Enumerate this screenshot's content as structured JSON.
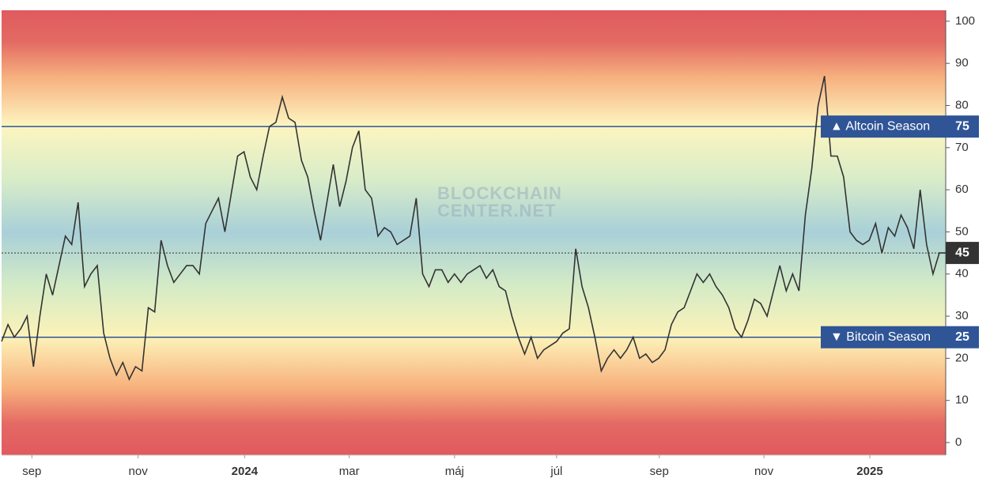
{
  "chart_data": {
    "type": "line",
    "series": [
      {
        "color": "#333333",
        "values": [
          24,
          28,
          25,
          27,
          30,
          18,
          30,
          40,
          35,
          42,
          49,
          47,
          57,
          37,
          40,
          42,
          26,
          20,
          16,
          19,
          15,
          18,
          17,
          32,
          31,
          48,
          42,
          38,
          40,
          42,
          42,
          40,
          52,
          55,
          58,
          50,
          59,
          68,
          69,
          63,
          60,
          68,
          75,
          76,
          82,
          77,
          76,
          67,
          63,
          55,
          48,
          57,
          66,
          56,
          62,
          70,
          74,
          60,
          58,
          49,
          51,
          50,
          47,
          48,
          49,
          58,
          40,
          37,
          41,
          41,
          38,
          40,
          38,
          40,
          41,
          42,
          39,
          41,
          37,
          36,
          30,
          25,
          21,
          25,
          20,
          22,
          23,
          24,
          26,
          27,
          46,
          37,
          32,
          25,
          17,
          20,
          22,
          20,
          22,
          25,
          20,
          21,
          19,
          20,
          22,
          28,
          31,
          32,
          36,
          40,
          38,
          40,
          37,
          35,
          32,
          27,
          25,
          29,
          34,
          33,
          30,
          36,
          42,
          36,
          40,
          36,
          54,
          65,
          80,
          87,
          68,
          68,
          63,
          50,
          48,
          47,
          48,
          52,
          45,
          51,
          49,
          54,
          51,
          46,
          60,
          47,
          40,
          45,
          45
        ]
      }
    ],
    "xlim": [
      0,
      148
    ],
    "xticks": [
      {
        "value": 4.75,
        "label": "sep"
      },
      {
        "value": 21.4,
        "label": "nov"
      },
      {
        "value": 38.1,
        "label": "2024"
      },
      {
        "value": 54.5,
        "label": "mar"
      },
      {
        "value": 71,
        "label": "máj"
      },
      {
        "value": 87,
        "label": "júl"
      },
      {
        "value": 103.1,
        "label": "sep"
      },
      {
        "value": 119.5,
        "label": "nov"
      },
      {
        "value": 136.1,
        "label": "2025"
      }
    ],
    "ylim": [
      -3,
      102.6
    ],
    "yticks": [
      0,
      10,
      20,
      30,
      40,
      50,
      60,
      70,
      80,
      90,
      100
    ],
    "annotations": [
      {
        "label": "▲ Altcoin Season",
        "value": 75,
        "color": "#2f5597"
      },
      {
        "label": "▼ Bitcoin Season",
        "value": 25,
        "color": "#2f5597"
      }
    ],
    "watermark": [
      "BLOCKCHAIN",
      "CENTER.NET"
    ]
  }
}
